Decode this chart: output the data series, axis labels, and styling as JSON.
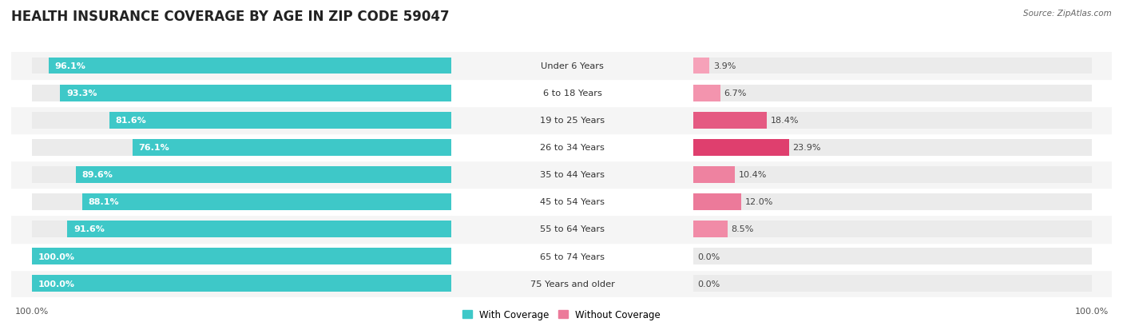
{
  "title": "HEALTH INSURANCE COVERAGE BY AGE IN ZIP CODE 59047",
  "source": "Source: ZipAtlas.com",
  "categories": [
    "Under 6 Years",
    "6 to 18 Years",
    "19 to 25 Years",
    "26 to 34 Years",
    "35 to 44 Years",
    "45 to 54 Years",
    "55 to 64 Years",
    "65 to 74 Years",
    "75 Years and older"
  ],
  "with_coverage": [
    96.1,
    93.3,
    81.6,
    76.1,
    89.6,
    88.1,
    91.6,
    100.0,
    100.0
  ],
  "without_coverage": [
    3.9,
    6.7,
    18.4,
    23.9,
    10.4,
    12.0,
    8.5,
    0.0,
    0.0
  ],
  "color_with": "#3ec8c8",
  "bar_bg_color": "#ebebeb",
  "title_fontsize": 12,
  "bar_height": 0.6,
  "legend_labels": [
    "With Coverage",
    "Without Coverage"
  ],
  "footer_label": "100.0%"
}
